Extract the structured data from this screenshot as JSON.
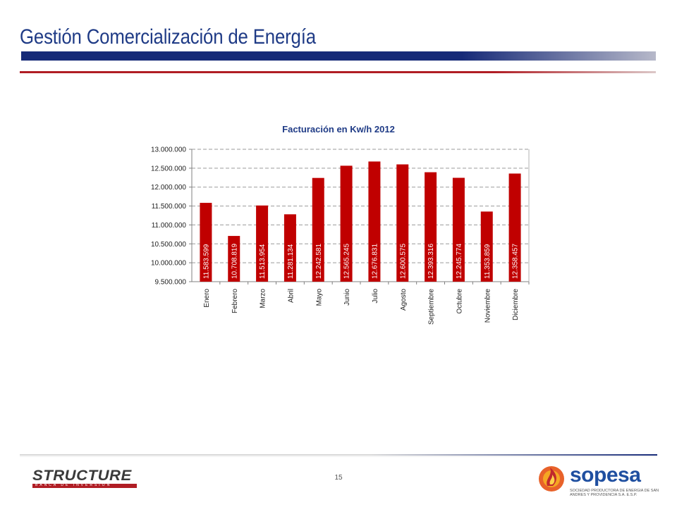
{
  "slide": {
    "title": "Gestión Comercialización de Energía",
    "page_number": "15"
  },
  "logos": {
    "left": {
      "name": "STRUCTURE",
      "tagline": "BANCA DE INVERSION"
    },
    "right": {
      "name": "sopesa",
      "tagline": "SOCIEDAD PRODUCTORA DE ENERGIA DE SAN ANDRES Y PROVIDENCIA S.A. E.S.P."
    }
  },
  "colors": {
    "title": "#1f3b86",
    "navy_rule": "#162a78",
    "red_rule": "#b01d24",
    "bar_fill": "#c00000",
    "bar_label": "#ffffff",
    "grid": "#9a9a9a"
  },
  "chart_data": {
    "type": "bar",
    "title": "Facturación en Kw/h 2012",
    "xlabel": "",
    "ylabel": "",
    "categories": [
      "Enero",
      "Febrero",
      "Marzo",
      "Abril",
      "Mayo",
      "Junio",
      "Julio",
      "Agosto",
      "Septiembre",
      "Octubre",
      "Noviembre",
      "Diciembre"
    ],
    "values": [
      11583599,
      10708819,
      11513954,
      11281134,
      12242581,
      12565245,
      12676831,
      12600575,
      12393316,
      12245774,
      11353859,
      12358457
    ],
    "value_labels": [
      "11.583.599",
      "10.708.819",
      "11.513.954",
      "11.281.134",
      "12.242.581",
      "12.565.245",
      "12.676.831",
      "12.600.575",
      "12.393.316",
      "12.245.774",
      "11.353.859",
      "12.358.457"
    ],
    "ylim": [
      9500000,
      13000000
    ],
    "yticks": [
      9500000,
      10000000,
      10500000,
      11000000,
      11500000,
      12000000,
      12500000,
      13000000
    ],
    "ytick_labels": [
      "9.500.000",
      "10.000.000",
      "10.500.000",
      "11.000.000",
      "11.500.000",
      "12.000.000",
      "12.500.000",
      "13.000.000"
    ],
    "grid": true,
    "grid_style": "dashed",
    "legend": "none"
  }
}
